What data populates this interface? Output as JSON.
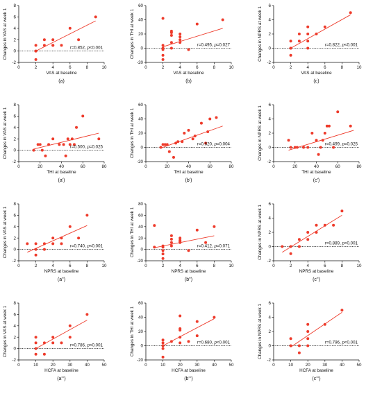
{
  "colors": {
    "point": "#ee3b2b",
    "fit": "#ee3b2b",
    "axis": "#111111",
    "zero_line": "#111111"
  },
  "chart_data": [
    {
      "type": "scatter",
      "caption": "(a)",
      "xlabel": "VAS at baseline",
      "ylabel": "Changes in VAS at week 1",
      "xlim": [
        0,
        10
      ],
      "ylim": [
        -2,
        8
      ],
      "xticks": [
        0,
        2,
        4,
        6,
        8,
        10
      ],
      "yticks": [
        -2,
        0,
        2,
        4,
        6,
        8
      ],
      "annotation": {
        "r": "r=0.852,",
        "p": "p",
        "pval": "<0.001"
      },
      "points": [
        [
          2,
          -1.5
        ],
        [
          2,
          0
        ],
        [
          2,
          0
        ],
        [
          2,
          1
        ],
        [
          3,
          1
        ],
        [
          3,
          2
        ],
        [
          4,
          1
        ],
        [
          4,
          1
        ],
        [
          4,
          2
        ],
        [
          5,
          1
        ],
        [
          6,
          4
        ],
        [
          7,
          2
        ],
        [
          9,
          6
        ]
      ],
      "fit": [
        [
          2,
          0.0
        ],
        [
          9,
          5.3
        ]
      ]
    },
    {
      "type": "scatter",
      "caption": "(b)",
      "xlabel": "VAS at baseline",
      "ylabel": "Changes in THI at week 1",
      "xlim": [
        0,
        10
      ],
      "ylim": [
        -20,
        60
      ],
      "xticks": [
        0,
        2,
        4,
        6,
        8,
        10
      ],
      "yticks": [
        -20,
        0,
        20,
        40,
        60
      ],
      "annotation": {
        "r": "r=0.495,",
        "p": "p",
        "pval": "=0.027"
      },
      "points": [
        [
          2,
          -16
        ],
        [
          2,
          -10
        ],
        [
          2,
          -2
        ],
        [
          2,
          0
        ],
        [
          2,
          4
        ],
        [
          2,
          42
        ],
        [
          3,
          0
        ],
        [
          3,
          8
        ],
        [
          3,
          18
        ],
        [
          3,
          22
        ],
        [
          3,
          24
        ],
        [
          4,
          8
        ],
        [
          4,
          12
        ],
        [
          4,
          16
        ],
        [
          4,
          20
        ],
        [
          5,
          -2
        ],
        [
          6,
          34
        ],
        [
          9,
          40
        ]
      ],
      "fit": [
        [
          2,
          2
        ],
        [
          9,
          28
        ]
      ]
    },
    {
      "type": "scatter",
      "caption": "(c)",
      "xlabel": "VAS at baseline",
      "ylabel": "Changes in NPRS at week 1",
      "xlim": [
        0,
        10
      ],
      "ylim": [
        -2,
        6
      ],
      "xticks": [
        0,
        2,
        4,
        6,
        8,
        10
      ],
      "yticks": [
        -2,
        0,
        2,
        4,
        6
      ],
      "annotation": {
        "r": "r=0.822,",
        "p": "p",
        "pval": "<0.001"
      },
      "points": [
        [
          2,
          -1
        ],
        [
          2,
          0
        ],
        [
          2,
          0
        ],
        [
          2,
          1
        ],
        [
          3,
          1
        ],
        [
          3,
          2
        ],
        [
          4,
          0
        ],
        [
          4,
          1
        ],
        [
          4,
          2
        ],
        [
          4,
          3
        ],
        [
          5,
          2
        ],
        [
          6,
          3
        ],
        [
          9,
          5
        ]
      ],
      "fit": [
        [
          2,
          0
        ],
        [
          9,
          4.7
        ]
      ]
    },
    {
      "type": "scatter",
      "caption": "(a')",
      "xlabel": "THI at baseline",
      "ylabel": "Changes in VAS at week 1",
      "xlim": [
        0,
        80
      ],
      "ylim": [
        -2,
        8
      ],
      "xticks": [
        0,
        20,
        40,
        60,
        80
      ],
      "yticks": [
        -2,
        0,
        2,
        4,
        6,
        8
      ],
      "annotation": {
        "r": "r=0.500,",
        "p": "p",
        "pval": "=0.025"
      },
      "points": [
        [
          14,
          0
        ],
        [
          18,
          1
        ],
        [
          20,
          1
        ],
        [
          22,
          0
        ],
        [
          25,
          -1
        ],
        [
          28,
          1
        ],
        [
          32,
          2
        ],
        [
          38,
          1
        ],
        [
          42,
          1
        ],
        [
          44,
          -1
        ],
        [
          46,
          2
        ],
        [
          48,
          1
        ],
        [
          50,
          2
        ],
        [
          52,
          1
        ],
        [
          54,
          4
        ],
        [
          60,
          6
        ],
        [
          75,
          2
        ]
      ],
      "fit": [
        [
          14,
          0.2
        ],
        [
          75,
          3.0
        ]
      ]
    },
    {
      "type": "scatter",
      "caption": "(b')",
      "xlabel": "THI at baseline",
      "ylabel": "Changes in THI at week 1",
      "xlim": [
        0,
        80
      ],
      "ylim": [
        -20,
        60
      ],
      "xticks": [
        0,
        20,
        40,
        60,
        80
      ],
      "yticks": [
        -20,
        0,
        20,
        40,
        60
      ],
      "annotation": {
        "r": "r=0.620,",
        "p": "p",
        "pval": "=0.004"
      },
      "points": [
        [
          14,
          0
        ],
        [
          16,
          4
        ],
        [
          18,
          4
        ],
        [
          20,
          4
        ],
        [
          22,
          -6
        ],
        [
          26,
          -14
        ],
        [
          28,
          6
        ],
        [
          30,
          8
        ],
        [
          34,
          8
        ],
        [
          36,
          20
        ],
        [
          40,
          24
        ],
        [
          44,
          12
        ],
        [
          46,
          16
        ],
        [
          52,
          34
        ],
        [
          56,
          6
        ],
        [
          58,
          22
        ],
        [
          60,
          40
        ],
        [
          66,
          42
        ]
      ],
      "fit": [
        [
          14,
          -1
        ],
        [
          72,
          30
        ]
      ]
    },
    {
      "type": "scatter",
      "caption": "(c')",
      "xlabel": "THI at baseline",
      "ylabel": "Changes in NPRS at week 1",
      "xlim": [
        0,
        80
      ],
      "ylim": [
        -2,
        6
      ],
      "xticks": [
        0,
        20,
        40,
        60,
        80
      ],
      "yticks": [
        -2,
        0,
        2,
        4,
        6
      ],
      "annotation": {
        "r": "r=0.499,",
        "p": "p",
        "pval": "=0.025"
      },
      "points": [
        [
          14,
          1
        ],
        [
          16,
          0
        ],
        [
          20,
          0
        ],
        [
          22,
          0
        ],
        [
          28,
          0
        ],
        [
          32,
          0
        ],
        [
          36,
          2
        ],
        [
          40,
          1
        ],
        [
          42,
          -1
        ],
        [
          44,
          0
        ],
        [
          46,
          1
        ],
        [
          48,
          2
        ],
        [
          50,
          3
        ],
        [
          52,
          3
        ],
        [
          56,
          0
        ],
        [
          60,
          5
        ],
        [
          72,
          3
        ]
      ],
      "fit": [
        [
          14,
          -0.4
        ],
        [
          75,
          2.4
        ]
      ]
    },
    {
      "type": "scatter",
      "caption": "(a'')",
      "xlabel": "NPRS at baseline",
      "ylabel": "Changes in VAS at week 1",
      "xlim": [
        0,
        10
      ],
      "ylim": [
        -2,
        8
      ],
      "xticks": [
        0,
        2,
        4,
        6,
        8,
        10
      ],
      "yticks": [
        -2,
        0,
        2,
        4,
        6,
        8
      ],
      "annotation": {
        "r": "r=0.740,",
        "p": "p",
        "pval": "<0.001"
      },
      "points": [
        [
          1,
          1
        ],
        [
          2,
          -1
        ],
        [
          2,
          0
        ],
        [
          2,
          1
        ],
        [
          3,
          0
        ],
        [
          3,
          1
        ],
        [
          4,
          1
        ],
        [
          4,
          2
        ],
        [
          5,
          1
        ],
        [
          5,
          2
        ],
        [
          6,
          4
        ],
        [
          7,
          2
        ],
        [
          8,
          6
        ]
      ],
      "fit": [
        [
          1,
          -0.5
        ],
        [
          8,
          4.2
        ]
      ]
    },
    {
      "type": "scatter",
      "caption": "(b'')",
      "xlabel": "NPRS at baseline",
      "ylabel": "Changes in THI at week 1",
      "xlim": [
        0,
        10
      ],
      "ylim": [
        -20,
        80
      ],
      "xticks": [
        0,
        2,
        4,
        6,
        8,
        10
      ],
      "yticks": [
        -20,
        0,
        20,
        40,
        60,
        80
      ],
      "annotation": {
        "r": "r=0.412,",
        "p": "p",
        "pval": "=0.071"
      },
      "points": [
        [
          1,
          4
        ],
        [
          1,
          42
        ],
        [
          2,
          -16
        ],
        [
          2,
          -8
        ],
        [
          2,
          -2
        ],
        [
          2,
          4
        ],
        [
          2,
          6
        ],
        [
          3,
          6
        ],
        [
          3,
          12
        ],
        [
          3,
          18
        ],
        [
          3,
          24
        ],
        [
          4,
          12
        ],
        [
          4,
          14
        ],
        [
          4,
          16
        ],
        [
          4,
          20
        ],
        [
          5,
          -2
        ],
        [
          6,
          34
        ],
        [
          7,
          12
        ],
        [
          8,
          40
        ]
      ],
      "fit": [
        [
          1,
          3
        ],
        [
          8,
          24
        ]
      ]
    },
    {
      "type": "scatter",
      "caption": "(c'')",
      "xlabel": "NPRS at baseline",
      "ylabel": "Changes in NPRS at week 1",
      "xlim": [
        0,
        10
      ],
      "ylim": [
        -2,
        6
      ],
      "xticks": [
        0,
        2,
        4,
        6,
        8,
        10
      ],
      "yticks": [
        -2,
        0,
        2,
        4,
        6
      ],
      "annotation": {
        "r": "r=0.889,",
        "p": "p",
        "pval": "<0.001"
      },
      "points": [
        [
          1,
          0
        ],
        [
          2,
          -1
        ],
        [
          2,
          0
        ],
        [
          3,
          0
        ],
        [
          3,
          1
        ],
        [
          4,
          1
        ],
        [
          4,
          2
        ],
        [
          5,
          2
        ],
        [
          5,
          3
        ],
        [
          6,
          3
        ],
        [
          7,
          3
        ],
        [
          8,
          5
        ]
      ],
      "fit": [
        [
          1,
          -0.8
        ],
        [
          8,
          4.4
        ]
      ]
    },
    {
      "type": "scatter",
      "caption": "(a''')",
      "xlabel": "HCFA at baseline",
      "ylabel": "Changes in VAS at week 1",
      "xlim": [
        0,
        50
      ],
      "ylim": [
        -2,
        8
      ],
      "xticks": [
        0,
        10,
        20,
        30,
        40,
        50
      ],
      "yticks": [
        -2,
        0,
        2,
        4,
        6,
        8
      ],
      "annotation": {
        "r": "r=0.786,",
        "p": "p",
        "pval": "<0.001"
      },
      "points": [
        [
          10,
          -1
        ],
        [
          10,
          0
        ],
        [
          10,
          1
        ],
        [
          10,
          2
        ],
        [
          15,
          -1
        ],
        [
          15,
          1
        ],
        [
          20,
          1
        ],
        [
          20,
          2
        ],
        [
          25,
          1
        ],
        [
          30,
          2
        ],
        [
          30,
          4
        ],
        [
          40,
          6
        ]
      ],
      "fit": [
        [
          10,
          0
        ],
        [
          40,
          5
        ]
      ]
    },
    {
      "type": "scatter",
      "caption": "(b''')",
      "xlabel": "HCFA at baseline",
      "ylabel": "Changes in THI at week 1",
      "xlim": [
        0,
        50
      ],
      "ylim": [
        -20,
        60
      ],
      "xticks": [
        0,
        10,
        20,
        30,
        40,
        50
      ],
      "yticks": [
        -20,
        0,
        20,
        40,
        60
      ],
      "annotation": {
        "r": "r=0.680,",
        "p": "p",
        "pval": "<0.001"
      },
      "points": [
        [
          10,
          -16
        ],
        [
          10,
          -4
        ],
        [
          10,
          0
        ],
        [
          10,
          4
        ],
        [
          10,
          8
        ],
        [
          15,
          6
        ],
        [
          20,
          4
        ],
        [
          20,
          12
        ],
        [
          20,
          22
        ],
        [
          20,
          24
        ],
        [
          20,
          42
        ],
        [
          25,
          6
        ],
        [
          30,
          14
        ],
        [
          30,
          34
        ],
        [
          40,
          40
        ]
      ],
      "fit": [
        [
          10,
          0
        ],
        [
          40,
          38
        ]
      ]
    },
    {
      "type": "scatter",
      "caption": "(c''')",
      "xlabel": "HCFA at baseline",
      "ylabel": "Changes in NPRS at week 1",
      "xlim": [
        0,
        50
      ],
      "ylim": [
        -2,
        6
      ],
      "xticks": [
        0,
        10,
        20,
        30,
        40,
        50
      ],
      "yticks": [
        -2,
        0,
        2,
        4,
        6
      ],
      "annotation": {
        "r": "r=0.796,",
        "p": "p",
        "pval": "<0.001"
      },
      "points": [
        [
          10,
          0
        ],
        [
          10,
          1
        ],
        [
          15,
          -1
        ],
        [
          15,
          0
        ],
        [
          20,
          0
        ],
        [
          20,
          1
        ],
        [
          20,
          2
        ],
        [
          20,
          3
        ],
        [
          30,
          3
        ],
        [
          40,
          5
        ]
      ],
      "fit": [
        [
          10,
          -0.2
        ],
        [
          40,
          4.7
        ]
      ]
    }
  ]
}
